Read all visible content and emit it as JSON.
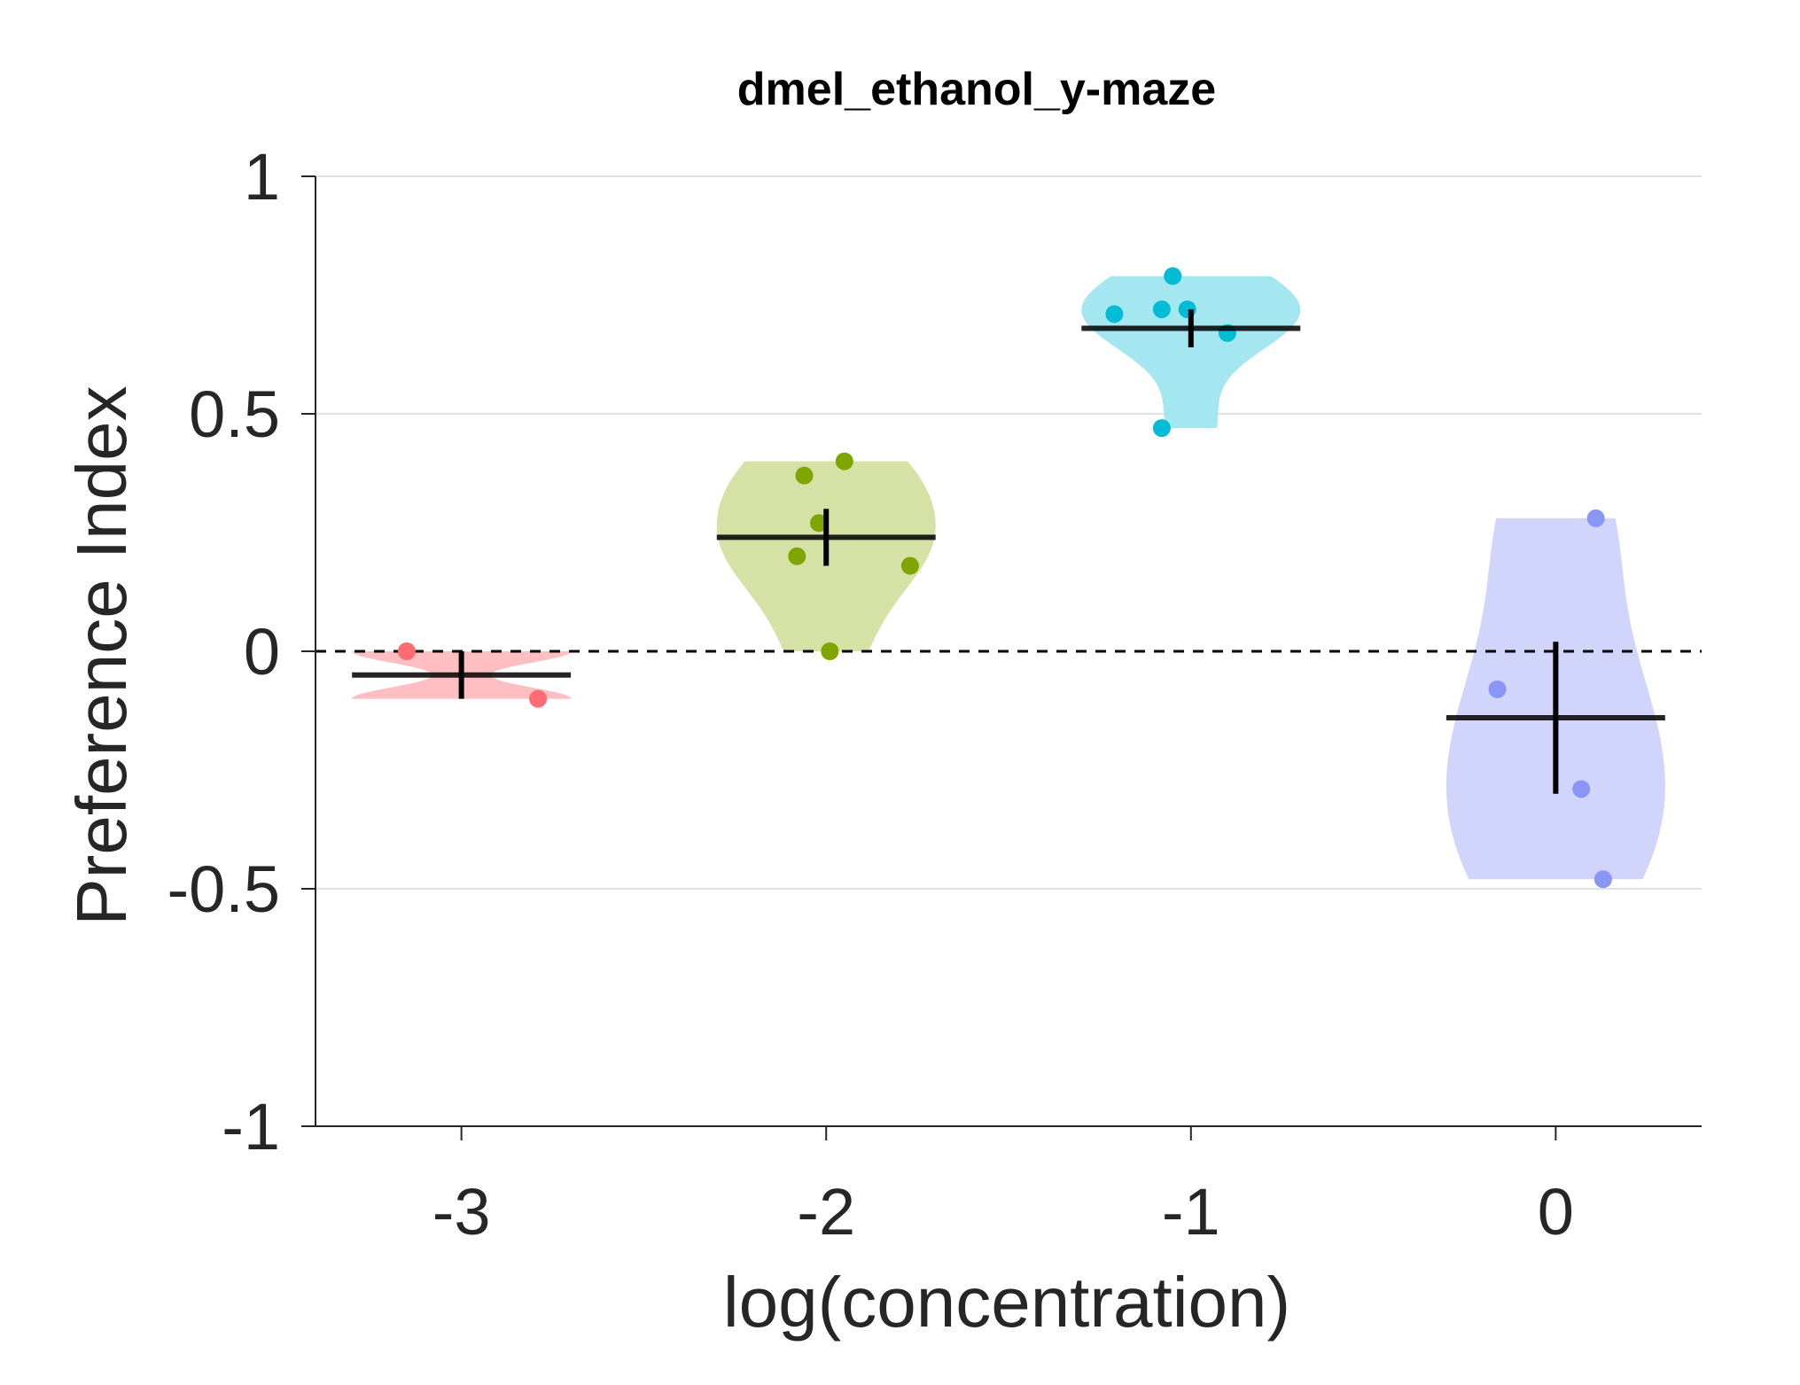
{
  "chart_data": {
    "type": "violin",
    "title": "dmel_ethanol_y-maze",
    "xlabel": "log(concentration)",
    "ylabel": "Preference Index",
    "xlim": [
      -3.4,
      0.4
    ],
    "ylim": [
      -1,
      1
    ],
    "x_ticks": [
      -3,
      -2,
      -1,
      0
    ],
    "x_tick_labels": [
      "-3",
      "-2",
      "-1",
      "0"
    ],
    "y_ticks": [
      1,
      0.5,
      0,
      -0.5,
      -1
    ],
    "y_tick_labels": [
      "1",
      "0.5",
      "0",
      "-0.5",
      "-1"
    ],
    "grid": "horizontal",
    "reference_line": 0,
    "groups": [
      {
        "x": -3,
        "color": "#ff6b73",
        "fill": "#ffb7bb",
        "mean": -0.05,
        "error": 0.05,
        "points": [
          [
            -3.15,
            0.0
          ],
          [
            -2.79,
            -0.1
          ]
        ]
      },
      {
        "x": -2,
        "color": "#7fa500",
        "fill": "#d2df9b",
        "mean": 0.24,
        "error": 0.06,
        "points": [
          [
            -2.06,
            0.37
          ],
          [
            -1.95,
            0.4
          ],
          [
            -2.02,
            0.27
          ],
          [
            -2.08,
            0.2
          ],
          [
            -1.77,
            0.18
          ],
          [
            -1.99,
            0.0
          ]
        ]
      },
      {
        "x": -1,
        "color": "#00bcd4",
        "fill": "#9be4ee",
        "mean": 0.68,
        "error": 0.04,
        "points": [
          [
            -1.05,
            0.79
          ],
          [
            -1.21,
            0.71
          ],
          [
            -1.08,
            0.72
          ],
          [
            -1.01,
            0.72
          ],
          [
            -0.9,
            0.67
          ],
          [
            -1.08,
            0.47
          ]
        ]
      },
      {
        "x": 0,
        "color": "#8a96f5",
        "fill": "#ccd0fc",
        "mean": -0.14,
        "error": 0.16,
        "points": [
          [
            0.11,
            0.28
          ],
          [
            -0.16,
            -0.08
          ],
          [
            0.07,
            -0.29
          ],
          [
            0.13,
            -0.48
          ]
        ]
      }
    ]
  }
}
